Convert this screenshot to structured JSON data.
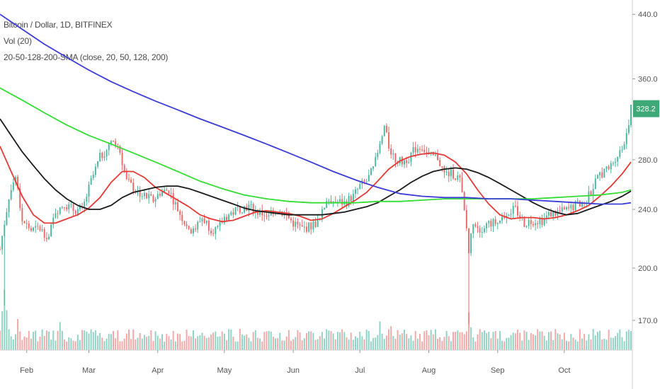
{
  "legend": {
    "symbol": "Bitcoin / Dollar, 1D, BITFINEX",
    "volume": "Vol (20)",
    "sma": "20-50-128-200-SMA (close, 20, 50, 128, 200)"
  },
  "price_badge": {
    "value": "328.2",
    "color": "#3fa877"
  },
  "colors": {
    "up": "#4db6a1",
    "down": "#e86a6a",
    "vol_up": "#8fd3c5",
    "vol_down": "#f2a8a8",
    "sma20": "#e53935",
    "sma50": "#1a1a1a",
    "sma128": "#33dd33",
    "sma200": "#3b3bd6"
  },
  "chart_data": {
    "type": "candlestick",
    "title": "Bitcoin / Dollar, 1D, BITFINEX",
    "y_ticks": [
      {
        "value": 170,
        "label": "170.0"
      },
      {
        "value": 200,
        "label": "200.0"
      },
      {
        "value": 240,
        "label": "240.0"
      },
      {
        "value": 280,
        "label": "280.0"
      },
      {
        "value": 360,
        "label": "360.0"
      },
      {
        "value": 440,
        "label": "440.0"
      }
    ],
    "y_scale": "log",
    "ylim": [
      155,
      460
    ],
    "x_range": [
      "2015-01-20",
      "2015-10-31"
    ],
    "x_ticks": [
      {
        "date": "2015-02-01",
        "label": "Feb"
      },
      {
        "date": "2015-03-01",
        "label": "Mar"
      },
      {
        "date": "2015-04-01",
        "label": "Apr"
      },
      {
        "date": "2015-05-01",
        "label": "May"
      },
      {
        "date": "2015-06-01",
        "label": "Jun"
      },
      {
        "date": "2015-07-01",
        "label": "Jul"
      },
      {
        "date": "2015-08-01",
        "label": "Aug"
      },
      {
        "date": "2015-09-01",
        "label": "Sep"
      },
      {
        "date": "2015-10-01",
        "label": "Oct"
      }
    ],
    "close_path": [
      [
        "2015-01-20",
        212
      ],
      [
        "2015-01-24",
        250
      ],
      [
        "2015-01-27",
        266
      ],
      [
        "2015-01-30",
        232
      ],
      [
        "2015-02-03",
        225
      ],
      [
        "2015-02-07",
        226
      ],
      [
        "2015-02-11",
        220
      ],
      [
        "2015-02-14",
        239
      ],
      [
        "2015-02-18",
        244
      ],
      [
        "2015-02-22",
        240
      ],
      [
        "2015-02-26",
        239
      ],
      [
        "2015-03-02",
        262
      ],
      [
        "2015-03-06",
        282
      ],
      [
        "2015-03-10",
        292
      ],
      [
        "2015-03-12",
        296
      ],
      [
        "2015-03-15",
        287
      ],
      [
        "2015-03-18",
        262
      ],
      [
        "2015-03-22",
        255
      ],
      [
        "2015-03-26",
        250
      ],
      [
        "2015-03-30",
        247
      ],
      [
        "2015-04-02",
        253
      ],
      [
        "2015-04-06",
        255
      ],
      [
        "2015-04-10",
        240
      ],
      [
        "2015-04-14",
        228
      ],
      [
        "2015-04-17",
        224
      ],
      [
        "2015-04-21",
        234
      ],
      [
        "2015-04-25",
        226
      ],
      [
        "2015-04-28",
        225
      ],
      [
        "2015-05-01",
        234
      ],
      [
        "2015-05-05",
        238
      ],
      [
        "2015-05-08",
        241
      ],
      [
        "2015-05-12",
        242
      ],
      [
        "2015-05-16",
        238
      ],
      [
        "2015-05-20",
        236
      ],
      [
        "2015-05-24",
        240
      ],
      [
        "2015-05-28",
        237
      ],
      [
        "2015-06-01",
        230
      ],
      [
        "2015-06-05",
        226
      ],
      [
        "2015-06-09",
        228
      ],
      [
        "2015-06-13",
        232
      ],
      [
        "2015-06-16",
        248
      ],
      [
        "2015-06-20",
        246
      ],
      [
        "2015-06-24",
        245
      ],
      [
        "2015-06-28",
        250
      ],
      [
        "2015-07-01",
        258
      ],
      [
        "2015-07-04",
        262
      ],
      [
        "2015-07-07",
        272
      ],
      [
        "2015-07-10",
        292
      ],
      [
        "2015-07-12",
        310
      ],
      [
        "2015-07-14",
        292
      ],
      [
        "2015-07-17",
        280
      ],
      [
        "2015-07-20",
        278
      ],
      [
        "2015-07-23",
        282
      ],
      [
        "2015-07-26",
        290
      ],
      [
        "2015-07-29",
        292
      ],
      [
        "2015-08-01",
        283
      ],
      [
        "2015-08-05",
        282
      ],
      [
        "2015-08-08",
        268
      ],
      [
        "2015-08-12",
        268
      ],
      [
        "2015-08-15",
        263
      ],
      [
        "2015-08-18",
        226
      ],
      [
        "2015-08-19",
        210
      ],
      [
        "2015-08-21",
        232
      ],
      [
        "2015-08-24",
        226
      ],
      [
        "2015-08-28",
        230
      ],
      [
        "2015-09-01",
        230
      ],
      [
        "2015-09-05",
        238
      ],
      [
        "2015-09-09",
        240
      ],
      [
        "2015-09-13",
        230
      ],
      [
        "2015-09-17",
        232
      ],
      [
        "2015-09-21",
        232
      ],
      [
        "2015-09-25",
        237
      ],
      [
        "2015-09-29",
        238
      ],
      [
        "2015-10-03",
        240
      ],
      [
        "2015-10-07",
        244
      ],
      [
        "2015-10-10",
        245
      ],
      [
        "2015-10-13",
        254
      ],
      [
        "2015-10-17",
        268
      ],
      [
        "2015-10-21",
        272
      ],
      [
        "2015-10-24",
        282
      ],
      [
        "2015-10-27",
        290
      ],
      [
        "2015-10-29",
        305
      ],
      [
        "2015-10-31",
        328
      ]
    ],
    "spikes": [
      {
        "date": "2015-01-22",
        "low": 178
      },
      {
        "date": "2015-08-19",
        "low": 168
      }
    ],
    "series": [
      {
        "name": "SMA 20",
        "color_key": "sma20",
        "points": [
          [
            "2015-01-20",
            292
          ],
          [
            "2015-01-25",
            270
          ],
          [
            "2015-01-30",
            250
          ],
          [
            "2015-02-04",
            236
          ],
          [
            "2015-02-09",
            230
          ],
          [
            "2015-02-14",
            230
          ],
          [
            "2015-02-19",
            233
          ],
          [
            "2015-02-24",
            236
          ],
          [
            "2015-03-01",
            241
          ],
          [
            "2015-03-06",
            249
          ],
          [
            "2015-03-11",
            261
          ],
          [
            "2015-03-16",
            270
          ],
          [
            "2015-03-21",
            270
          ],
          [
            "2015-03-26",
            265
          ],
          [
            "2015-03-31",
            257
          ],
          [
            "2015-04-05",
            252
          ],
          [
            "2015-04-10",
            247
          ],
          [
            "2015-04-15",
            242
          ],
          [
            "2015-04-20",
            236
          ],
          [
            "2015-04-25",
            233
          ],
          [
            "2015-04-30",
            231
          ],
          [
            "2015-05-05",
            232
          ],
          [
            "2015-05-10",
            235
          ],
          [
            "2015-05-15",
            238
          ],
          [
            "2015-05-20",
            239
          ],
          [
            "2015-05-25",
            238
          ],
          [
            "2015-05-30",
            237
          ],
          [
            "2015-06-04",
            235
          ],
          [
            "2015-06-09",
            232
          ],
          [
            "2015-06-14",
            233
          ],
          [
            "2015-06-19",
            237
          ],
          [
            "2015-06-24",
            242
          ],
          [
            "2015-06-29",
            247
          ],
          [
            "2015-07-04",
            253
          ],
          [
            "2015-07-09",
            262
          ],
          [
            "2015-07-14",
            272
          ],
          [
            "2015-07-19",
            279
          ],
          [
            "2015-07-24",
            283
          ],
          [
            "2015-07-29",
            285
          ],
          [
            "2015-08-03",
            286
          ],
          [
            "2015-08-08",
            284
          ],
          [
            "2015-08-13",
            278
          ],
          [
            "2015-08-18",
            268
          ],
          [
            "2015-08-23",
            255
          ],
          [
            "2015-08-28",
            244
          ],
          [
            "2015-09-02",
            236
          ],
          [
            "2015-09-07",
            233
          ],
          [
            "2015-09-12",
            234
          ],
          [
            "2015-09-17",
            234
          ],
          [
            "2015-09-22",
            233
          ],
          [
            "2015-09-27",
            234
          ],
          [
            "2015-10-02",
            236
          ],
          [
            "2015-10-07",
            239
          ],
          [
            "2015-10-12",
            243
          ],
          [
            "2015-10-17",
            250
          ],
          [
            "2015-10-22",
            258
          ],
          [
            "2015-10-27",
            268
          ],
          [
            "2015-10-31",
            278
          ]
        ]
      },
      {
        "name": "SMA 50",
        "color_key": "sma50",
        "points": [
          [
            "2015-01-20",
            318
          ],
          [
            "2015-01-25",
            302
          ],
          [
            "2015-01-30",
            287
          ],
          [
            "2015-02-04",
            275
          ],
          [
            "2015-02-09",
            264
          ],
          [
            "2015-02-14",
            255
          ],
          [
            "2015-02-19",
            248
          ],
          [
            "2015-02-24",
            243
          ],
          [
            "2015-03-01",
            240
          ],
          [
            "2015-03-06",
            240
          ],
          [
            "2015-03-11",
            243
          ],
          [
            "2015-03-16",
            249
          ],
          [
            "2015-03-21",
            253
          ],
          [
            "2015-03-26",
            255
          ],
          [
            "2015-03-31",
            257
          ],
          [
            "2015-04-05",
            258
          ],
          [
            "2015-04-10",
            258
          ],
          [
            "2015-04-15",
            256
          ],
          [
            "2015-04-20",
            253
          ],
          [
            "2015-04-25",
            250
          ],
          [
            "2015-04-30",
            247
          ],
          [
            "2015-05-05",
            244
          ],
          [
            "2015-05-10",
            241
          ],
          [
            "2015-05-15",
            239
          ],
          [
            "2015-05-20",
            238
          ],
          [
            "2015-05-25",
            237
          ],
          [
            "2015-05-30",
            236
          ],
          [
            "2015-06-04",
            236
          ],
          [
            "2015-06-09",
            236
          ],
          [
            "2015-06-14",
            236
          ],
          [
            "2015-06-19",
            237
          ],
          [
            "2015-06-24",
            238
          ],
          [
            "2015-06-29",
            240
          ],
          [
            "2015-07-04",
            242
          ],
          [
            "2015-07-09",
            245
          ],
          [
            "2015-07-14",
            250
          ],
          [
            "2015-07-19",
            255
          ],
          [
            "2015-07-24",
            261
          ],
          [
            "2015-07-29",
            266
          ],
          [
            "2015-08-03",
            270
          ],
          [
            "2015-08-08",
            272
          ],
          [
            "2015-08-13",
            273
          ],
          [
            "2015-08-18",
            272
          ],
          [
            "2015-08-23",
            269
          ],
          [
            "2015-08-28",
            265
          ],
          [
            "2015-09-02",
            260
          ],
          [
            "2015-09-07",
            255
          ],
          [
            "2015-09-12",
            250
          ],
          [
            "2015-09-17",
            245
          ],
          [
            "2015-09-22",
            241
          ],
          [
            "2015-09-27",
            238
          ],
          [
            "2015-10-02",
            236
          ],
          [
            "2015-10-07",
            237
          ],
          [
            "2015-10-12",
            240
          ],
          [
            "2015-10-17",
            243
          ],
          [
            "2015-10-22",
            246
          ],
          [
            "2015-10-27",
            250
          ],
          [
            "2015-10-31",
            254
          ]
        ]
      },
      {
        "name": "SMA 128",
        "color_key": "sma128",
        "points": [
          [
            "2015-01-20",
            350
          ],
          [
            "2015-01-30",
            337
          ],
          [
            "2015-02-09",
            324
          ],
          [
            "2015-02-19",
            312
          ],
          [
            "2015-03-01",
            302
          ],
          [
            "2015-03-11",
            294
          ],
          [
            "2015-03-21",
            286
          ],
          [
            "2015-03-31",
            278
          ],
          [
            "2015-04-10",
            270
          ],
          [
            "2015-04-20",
            262
          ],
          [
            "2015-04-30",
            256
          ],
          [
            "2015-05-10",
            251
          ],
          [
            "2015-05-20",
            248
          ],
          [
            "2015-05-30",
            246
          ],
          [
            "2015-06-09",
            245
          ],
          [
            "2015-06-19",
            245
          ],
          [
            "2015-06-29",
            245
          ],
          [
            "2015-07-09",
            246
          ],
          [
            "2015-07-19",
            246
          ],
          [
            "2015-07-29",
            247
          ],
          [
            "2015-08-08",
            248
          ],
          [
            "2015-08-18",
            248
          ],
          [
            "2015-08-28",
            248
          ],
          [
            "2015-09-07",
            248
          ],
          [
            "2015-09-17",
            248
          ],
          [
            "2015-09-27",
            249
          ],
          [
            "2015-10-07",
            250
          ],
          [
            "2015-10-17",
            251
          ],
          [
            "2015-10-27",
            253
          ],
          [
            "2015-10-31",
            255
          ]
        ]
      },
      {
        "name": "SMA 200",
        "color_key": "sma200",
        "points": [
          [
            "2015-01-20",
            440
          ],
          [
            "2015-01-30",
            420
          ],
          [
            "2015-02-09",
            401
          ],
          [
            "2015-02-19",
            385
          ],
          [
            "2015-03-01",
            370
          ],
          [
            "2015-03-11",
            357
          ],
          [
            "2015-03-21",
            346
          ],
          [
            "2015-03-31",
            336
          ],
          [
            "2015-04-10",
            327
          ],
          [
            "2015-04-20",
            318
          ],
          [
            "2015-04-30",
            310
          ],
          [
            "2015-05-10",
            302
          ],
          [
            "2015-05-20",
            294
          ],
          [
            "2015-05-30",
            286
          ],
          [
            "2015-06-09",
            278
          ],
          [
            "2015-06-19",
            270
          ],
          [
            "2015-06-29",
            263
          ],
          [
            "2015-07-09",
            257
          ],
          [
            "2015-07-19",
            252
          ],
          [
            "2015-07-29",
            250
          ],
          [
            "2015-08-08",
            249
          ],
          [
            "2015-08-18",
            249
          ],
          [
            "2015-08-28",
            248
          ],
          [
            "2015-09-07",
            248
          ],
          [
            "2015-09-17",
            247
          ],
          [
            "2015-09-27",
            246
          ],
          [
            "2015-10-07",
            245
          ],
          [
            "2015-10-17",
            244
          ],
          [
            "2015-10-27",
            244
          ],
          [
            "2015-10-31",
            245
          ]
        ]
      }
    ],
    "volume_peaks": [
      [
        "2015-01-22",
        1.0
      ],
      [
        "2015-01-28",
        0.45
      ],
      [
        "2015-02-16",
        0.55
      ],
      [
        "2015-03-12",
        0.35
      ],
      [
        "2015-03-24",
        0.3
      ],
      [
        "2015-04-15",
        0.25
      ],
      [
        "2015-05-20",
        0.2
      ],
      [
        "2015-06-16",
        0.3
      ],
      [
        "2015-07-10",
        0.45
      ],
      [
        "2015-07-15",
        0.35
      ],
      [
        "2015-08-19",
        0.55
      ],
      [
        "2015-08-24",
        0.3
      ],
      [
        "2015-09-05",
        0.15
      ],
      [
        "2015-10-12",
        0.15
      ],
      [
        "2015-10-31",
        0.3
      ]
    ]
  }
}
